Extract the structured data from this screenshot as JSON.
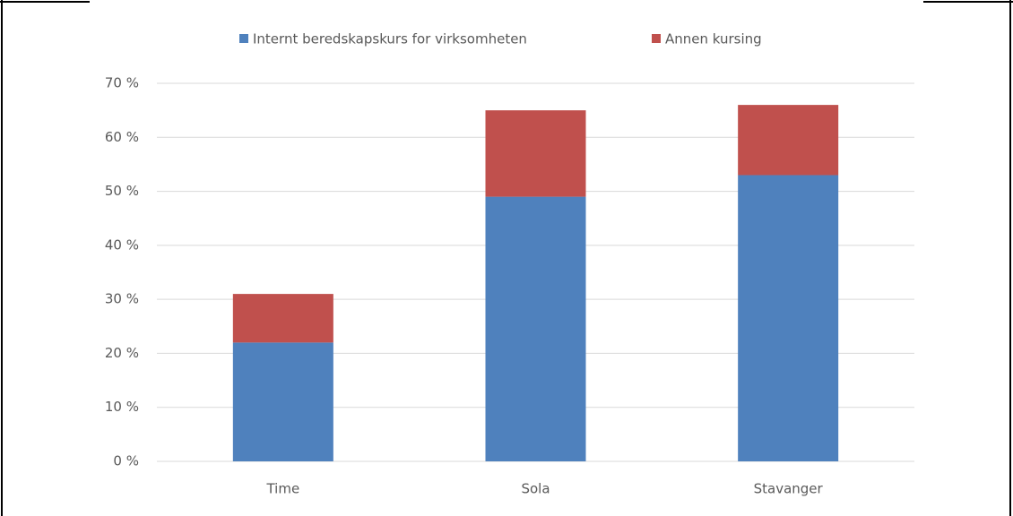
{
  "chart_data": {
    "type": "stacked_bar",
    "categories": [
      "Time",
      "Sola",
      "Stavanger"
    ],
    "series": [
      {
        "name": "Internt beredskapskurs for virksomheten",
        "color": "#4f81bd",
        "values": [
          22,
          49,
          53
        ]
      },
      {
        "name": "Annen kursing",
        "color": "#c0504d",
        "values": [
          9,
          16,
          13
        ]
      }
    ],
    "ylim": [
      0,
      70
    ],
    "yticks": [
      {
        "value": 0,
        "label": "0 %"
      },
      {
        "value": 10,
        "label": "10 %"
      },
      {
        "value": 20,
        "label": "20 %"
      },
      {
        "value": 30,
        "label": "30 %"
      },
      {
        "value": 40,
        "label": "40 %"
      },
      {
        "value": 50,
        "label": "50 %"
      },
      {
        "value": 60,
        "label": "60 %"
      },
      {
        "value": 70,
        "label": "70 %"
      }
    ],
    "grid": true,
    "legend": "top"
  }
}
